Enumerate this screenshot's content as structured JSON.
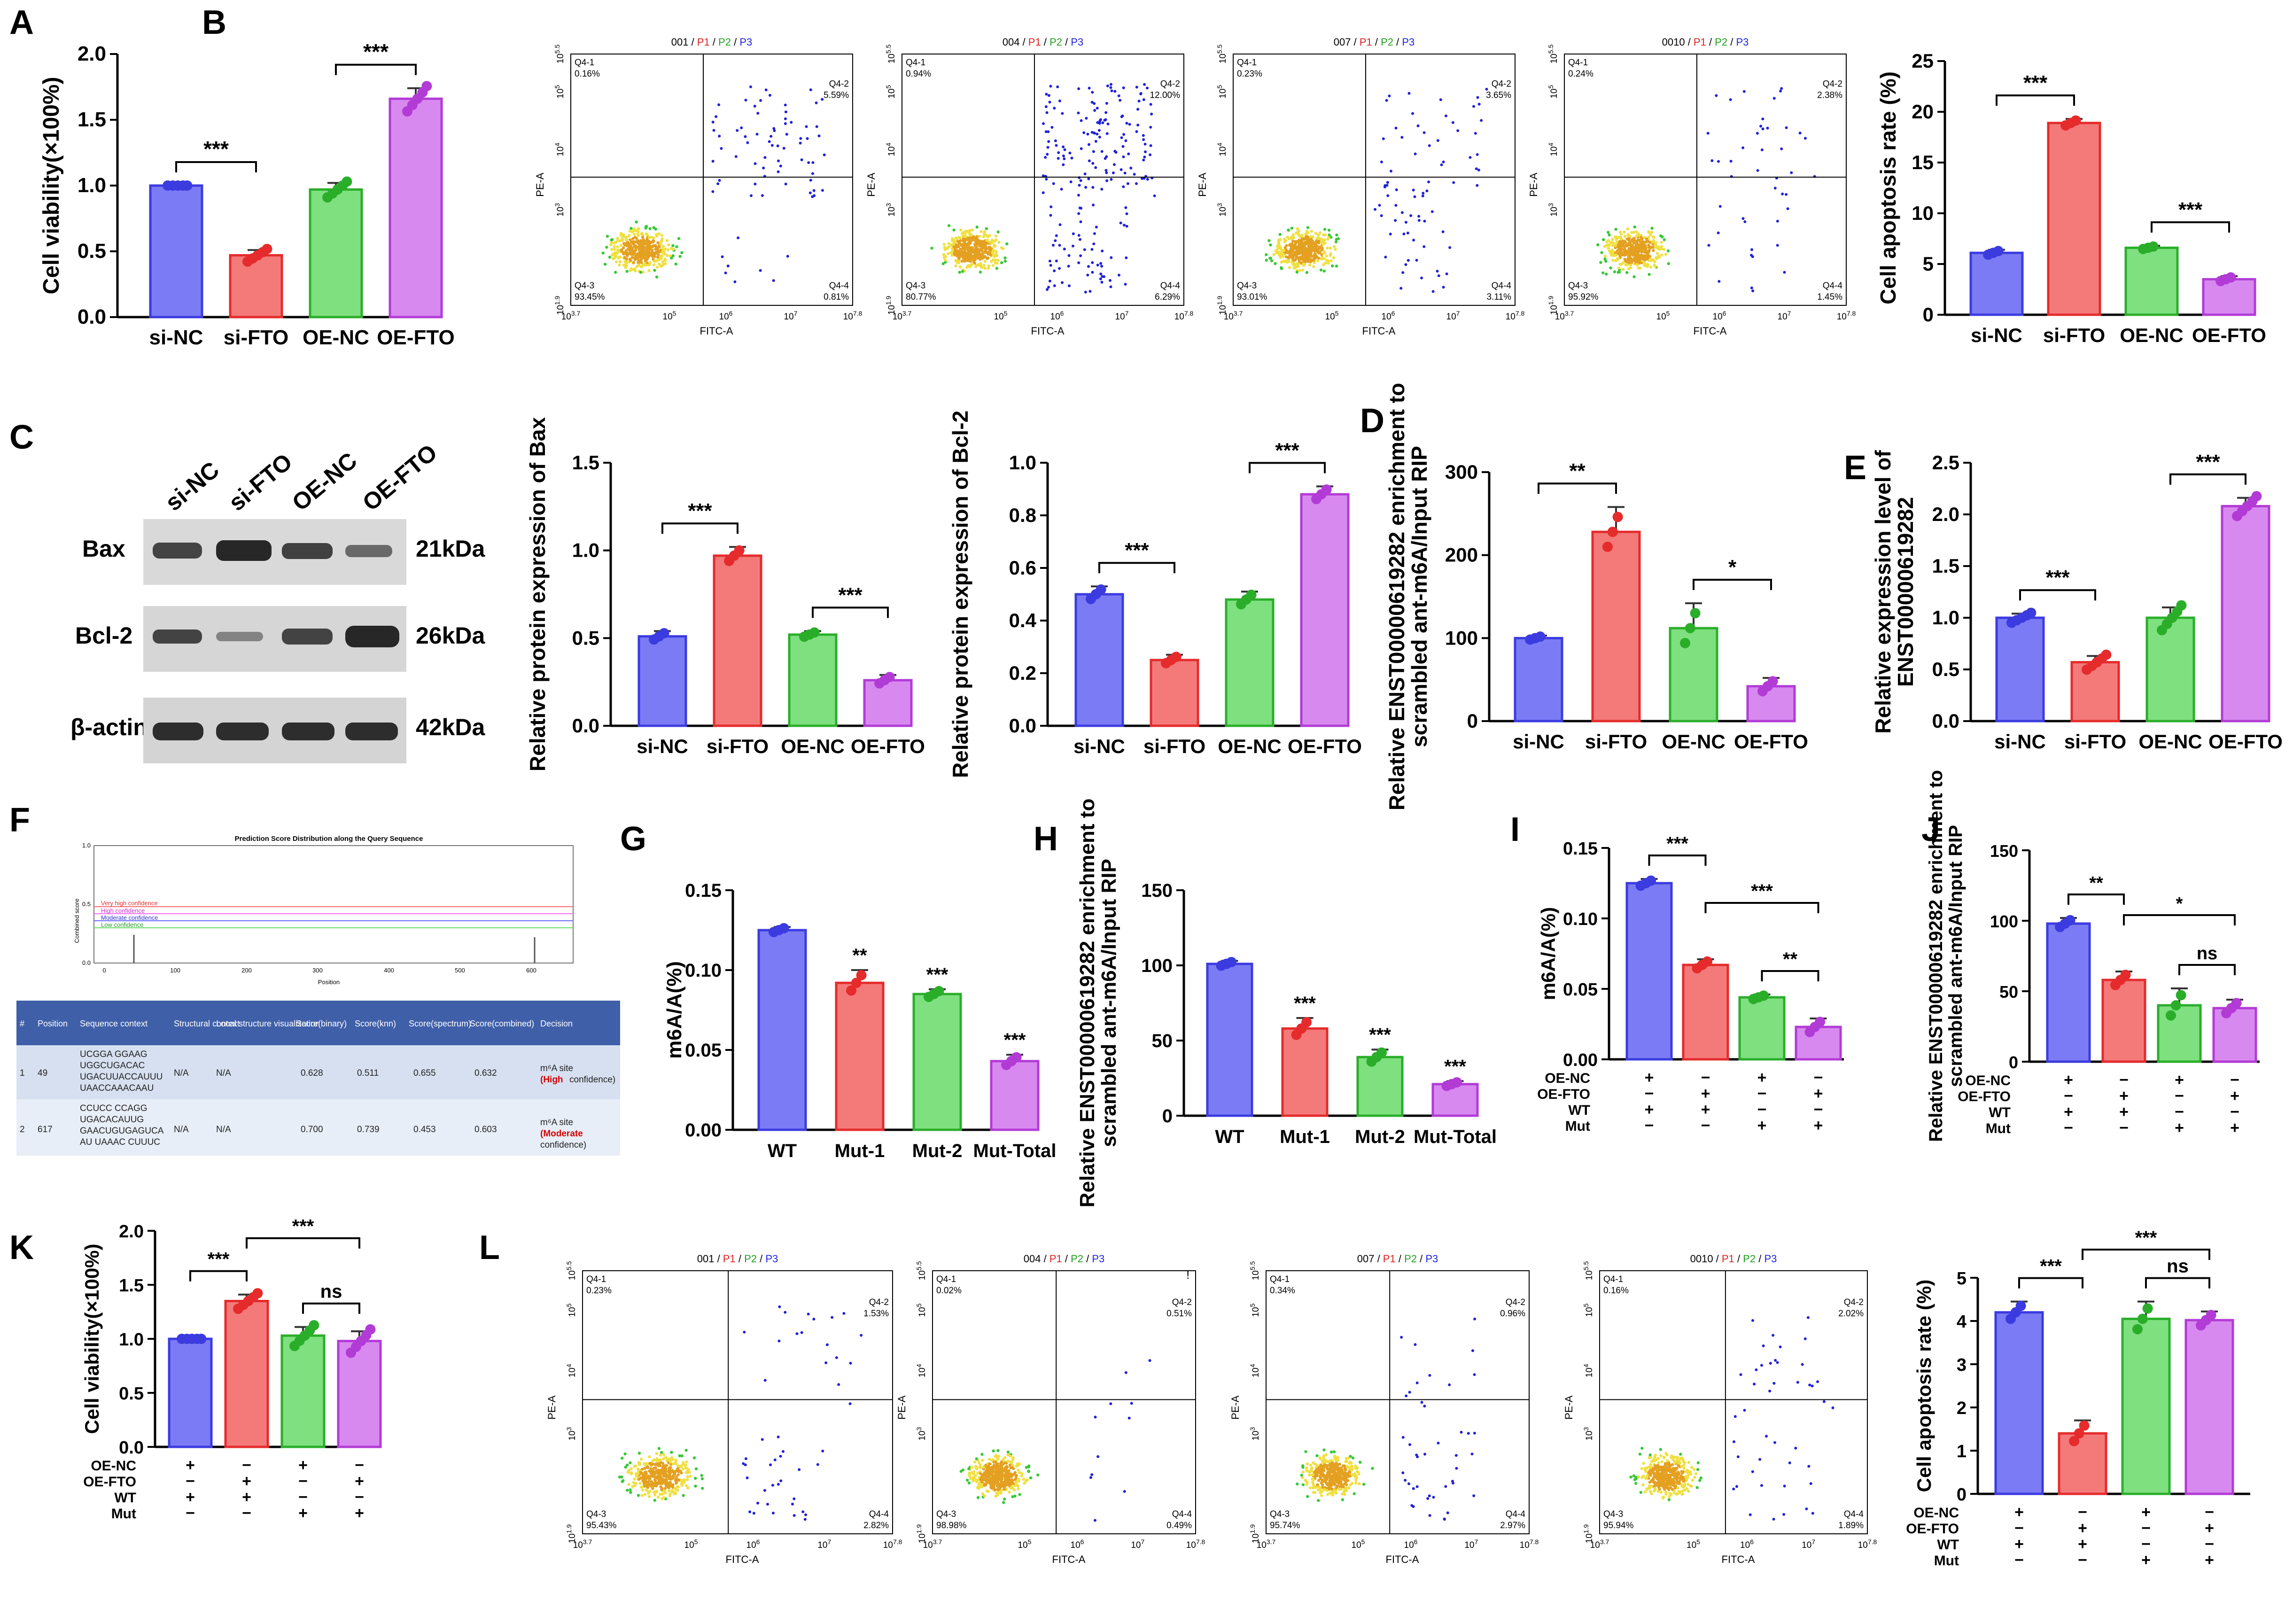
{
  "colors": {
    "blue": "#7b7bf5",
    "red": "#f47a7a",
    "green": "#7fe07f",
    "purple": "#d889f0",
    "dot_blue": "#3b3be0",
    "dot_red": "#e52b2b",
    "dot_green": "#2aae2a",
    "dot_purple": "#b23bd6"
  },
  "panels": {
    "A": "A",
    "B": "B",
    "C": "C",
    "D": "D",
    "E": "E",
    "F": "F",
    "G": "G",
    "H": "H",
    "I": "I",
    "J": "J",
    "K": "K",
    "L": "L"
  },
  "chart_data": [
    {
      "id": "A",
      "type": "bar",
      "categories": [
        "si-NC",
        "si-FTO",
        "OE-NC",
        "OE-FTO"
      ],
      "values": [
        1.0,
        0.47,
        0.97,
        1.66
      ],
      "errors": [
        0,
        0.04,
        0.05,
        0.08
      ],
      "ylabel": "Cell viability(×100%)",
      "ylim": [
        0,
        2.0
      ],
      "yticks": [
        "0.0",
        "0.5",
        "1.0",
        "1.5",
        "2.0"
      ],
      "sig": [
        {
          "label": "***",
          "from": 0,
          "to": 1
        },
        {
          "label": "***",
          "from": 2,
          "to": 3
        }
      ]
    },
    {
      "id": "B-bar",
      "type": "bar",
      "categories": [
        "si-NC",
        "si-FTO",
        "OE-NC",
        "OE-FTO"
      ],
      "values": [
        6.1,
        18.9,
        6.6,
        3.5
      ],
      "errors": [
        0.3,
        0.4,
        0.2,
        0.3
      ],
      "ylabel": "Cell apoptosis rate (%)",
      "ylim": [
        0,
        25
      ],
      "yticks": [
        "0",
        "5",
        "10",
        "15",
        "20",
        "25"
      ],
      "sig": [
        {
          "label": "***",
          "from": 0,
          "to": 1
        },
        {
          "label": "***",
          "from": 2,
          "to": 3
        }
      ]
    },
    {
      "id": "C-bax",
      "type": "bar",
      "categories": [
        "si-NC",
        "si-FTO",
        "OE-NC",
        "OE-FTO"
      ],
      "values": [
        0.51,
        0.97,
        0.52,
        0.26
      ],
      "errors": [
        0.03,
        0.05,
        0.02,
        0.03
      ],
      "ylabel": "Relative protein expression of Bax",
      "ylim": [
        0,
        1.5
      ],
      "yticks": [
        "0.0",
        "0.5",
        "1.0",
        "1.5"
      ],
      "sig": [
        {
          "label": "***",
          "from": 0,
          "to": 1
        },
        {
          "label": "***",
          "from": 2,
          "to": 3
        }
      ]
    },
    {
      "id": "C-bcl2",
      "type": "bar",
      "categories": [
        "si-NC",
        "si-FTO",
        "OE-NC",
        "OE-FTO"
      ],
      "values": [
        0.5,
        0.25,
        0.48,
        0.88
      ],
      "errors": [
        0.03,
        0.02,
        0.03,
        0.03
      ],
      "ylabel": "Relative protein expression of Bcl-2",
      "ylim": [
        0,
        1.0
      ],
      "yticks": [
        "0.0",
        "0.2",
        "0.4",
        "0.6",
        "0.8",
        "1.0"
      ],
      "sig": [
        {
          "label": "***",
          "from": 0,
          "to": 1
        },
        {
          "label": "***",
          "from": 2,
          "to": 3
        }
      ]
    },
    {
      "id": "D",
      "type": "bar",
      "categories": [
        "si-NC",
        "si-FTO",
        "OE-NC",
        "OE-FTO"
      ],
      "values": [
        100,
        228,
        112,
        42
      ],
      "errors": [
        3,
        30,
        30,
        10
      ],
      "ylabel": "Relative ENST00000619282 enrichment to scrambled ant-m6A/Input RIP",
      "ylim": [
        0,
        300
      ],
      "yticks": [
        "0",
        "100",
        "200",
        "300"
      ],
      "sig": [
        {
          "label": "**",
          "from": 0,
          "to": 1
        },
        {
          "label": "*",
          "from": 2,
          "to": 3
        }
      ]
    },
    {
      "id": "E",
      "type": "bar",
      "categories": [
        "si-NC",
        "si-FTO",
        "OE-NC",
        "OE-FTO"
      ],
      "values": [
        1.0,
        0.57,
        1.0,
        2.08
      ],
      "errors": [
        0.04,
        0.06,
        0.1,
        0.08
      ],
      "ylabel": "Relative expression level of ENST00000619282",
      "ylim": [
        0,
        2.5
      ],
      "yticks": [
        "0.0",
        "0.5",
        "1.0",
        "1.5",
        "2.0",
        "2.5"
      ],
      "sig": [
        {
          "label": "***",
          "from": 0,
          "to": 1
        },
        {
          "label": "***",
          "from": 2,
          "to": 3
        }
      ]
    },
    {
      "id": "G",
      "type": "bar",
      "categories": [
        "WT",
        "Mut-1",
        "Mut-2",
        "Mut-Total"
      ],
      "values": [
        0.125,
        0.092,
        0.085,
        0.043
      ],
      "errors": [
        0.002,
        0.008,
        0.003,
        0.004
      ],
      "ylabel": "m6A/A(%)",
      "ylim": [
        0,
        0.15
      ],
      "yticks": [
        "0.00",
        "0.05",
        "0.10",
        "0.15"
      ],
      "stars": [
        "",
        "**",
        "***",
        "***"
      ]
    },
    {
      "id": "H",
      "type": "bar",
      "categories": [
        "WT",
        "Mut-1",
        "Mut-2",
        "Mut-Total"
      ],
      "values": [
        101,
        58,
        39,
        21
      ],
      "errors": [
        2,
        7,
        5,
        2
      ],
      "ylabel": "Relative ENST00000619282 enrichment to scrambled ant-m6A/Input RIP",
      "ylim": [
        0,
        150
      ],
      "yticks": [
        "0",
        "50",
        "100",
        "150"
      ],
      "stars": [
        "",
        "***",
        "***",
        "***"
      ]
    },
    {
      "id": "I",
      "type": "bar",
      "categories": [
        "1",
        "2",
        "3",
        "4"
      ],
      "values": [
        0.125,
        0.067,
        0.044,
        0.023
      ],
      "errors": [
        0.003,
        0.004,
        0.002,
        0.006
      ],
      "ylabel": "m6A/A(%)",
      "ylim": [
        0,
        0.15
      ],
      "yticks": [
        "0.00",
        "0.05",
        "0.10",
        "0.15"
      ],
      "sig": [
        {
          "label": "***",
          "from": 0,
          "to": 1
        },
        {
          "label": "***",
          "from": 1,
          "to": 3
        },
        {
          "label": "**",
          "from": 2,
          "to": 3
        }
      ],
      "matrix": {
        "rows": [
          "OE-NC",
          "OE-FTO",
          "WT",
          "Mut"
        ],
        "cells": [
          [
            "+",
            "−",
            "+",
            "−"
          ],
          [
            "−",
            "+",
            "−",
            "+"
          ],
          [
            "+",
            "+",
            "−",
            "−"
          ],
          [
            "−",
            "−",
            "+",
            "+"
          ]
        ]
      }
    },
    {
      "id": "J",
      "type": "bar",
      "categories": [
        "1",
        "2",
        "3",
        "4"
      ],
      "values": [
        98,
        58,
        40,
        38
      ],
      "errors": [
        4,
        6,
        12,
        6
      ],
      "ylabel": "Relative ENST00000619282 enrichment to scrambled ant-m6A/Input RIP",
      "ylim": [
        0,
        150
      ],
      "yticks": [
        "0",
        "50",
        "100",
        "150"
      ],
      "sig": [
        {
          "label": "**",
          "from": 0,
          "to": 1
        },
        {
          "label": "*",
          "from": 1,
          "to": 3
        },
        {
          "label": "ns",
          "from": 2,
          "to": 3
        }
      ],
      "matrix": {
        "rows": [
          "OE-NC",
          "OE-FTO",
          "WT",
          "Mut"
        ],
        "cells": [
          [
            "+",
            "−",
            "+",
            "−"
          ],
          [
            "−",
            "+",
            "−",
            "+"
          ],
          [
            "+",
            "+",
            "−",
            "−"
          ],
          [
            "−",
            "−",
            "+",
            "+"
          ]
        ]
      }
    },
    {
      "id": "K",
      "type": "bar",
      "categories": [
        "1",
        "2",
        "3",
        "4"
      ],
      "values": [
        1.0,
        1.35,
        1.03,
        0.98
      ],
      "errors": [
        0,
        0.06,
        0.08,
        0.09
      ],
      "ylabel": "Cell viability(×100%)",
      "ylim": [
        0,
        2.0
      ],
      "yticks": [
        "0.0",
        "0.5",
        "1.0",
        "1.5",
        "2.0"
      ],
      "sig": [
        {
          "label": "***",
          "from": 0,
          "to": 1
        },
        {
          "label": "***",
          "from": 1,
          "to": 3
        },
        {
          "label": "ns",
          "from": 2,
          "to": 3
        }
      ],
      "matrix": {
        "rows": [
          "OE-NC",
          "OE-FTO",
          "WT",
          "Mut"
        ],
        "cells": [
          [
            "+",
            "−",
            "+",
            "−"
          ],
          [
            "−",
            "+",
            "−",
            "+"
          ],
          [
            "+",
            "+",
            "−",
            "−"
          ],
          [
            "−",
            "−",
            "+",
            "+"
          ]
        ]
      }
    },
    {
      "id": "L-bar",
      "type": "bar",
      "categories": [
        "1",
        "2",
        "3",
        "4"
      ],
      "values": [
        4.2,
        1.4,
        4.05,
        4.02
      ],
      "errors": [
        0.25,
        0.3,
        0.4,
        0.2
      ],
      "ylabel": "Cell apoptosis rate (%)",
      "ylim": [
        0,
        5
      ],
      "yticks": [
        "0",
        "1",
        "2",
        "3",
        "4",
        "5"
      ],
      "sig": [
        {
          "label": "***",
          "from": 0,
          "to": 1
        },
        {
          "label": "***",
          "from": 1,
          "to": 3
        },
        {
          "label": "ns",
          "from": 2,
          "to": 3
        }
      ],
      "matrix": {
        "rows": [
          "OE-NC",
          "OE-FTO",
          "WT",
          "Mut"
        ],
        "cells": [
          [
            "+",
            "−",
            "+",
            "−"
          ],
          [
            "−",
            "+",
            "−",
            "+"
          ],
          [
            "+",
            "+",
            "−",
            "−"
          ],
          [
            "−",
            "−",
            "+",
            "+"
          ]
        ]
      }
    }
  ],
  "flow": [
    {
      "row": "B",
      "title": [
        "0001",
        "/ P1 /",
        "P2",
        "/ P3"
      ],
      "t0": "001 /",
      "t1": "P1",
      "t2": " / ",
      "t3": "P2",
      "t4": " / ",
      "t5": "P3",
      "q": [
        "Q4-1",
        "0.16%",
        "Q4-2",
        "5.59%",
        "Q4-3",
        "93.45%",
        "Q4-4",
        "0.81%"
      ]
    },
    {
      "row": "B",
      "t0": "004 /",
      "t1": "P1",
      "t2": " / ",
      "t3": "P2",
      "t4": " / ",
      "t5": "P3",
      "q": [
        "Q4-1",
        "0.94%",
        "Q4-2",
        "12.00%",
        "Q4-3",
        "80.77%",
        "Q4-4",
        "6.29%"
      ]
    },
    {
      "row": "B",
      "t0": "007 /",
      "t1": "P1",
      "t2": " / ",
      "t3": "P2",
      "t4": " / ",
      "t5": "P3",
      "q": [
        "Q4-1",
        "0.23%",
        "Q4-2",
        "3.65%",
        "Q4-3",
        "93.01%",
        "Q4-4",
        "3.11%"
      ]
    },
    {
      "row": "B",
      "t0": "0010 /",
      "t1": "P1",
      "t2": " / ",
      "t3": "P2",
      "t4": " / ",
      "t5": "P3",
      "q": [
        "Q4-1",
        "0.24%",
        "Q4-2",
        "2.38%",
        "Q4-3",
        "95.92%",
        "Q4-4",
        "1.45%"
      ]
    },
    {
      "row": "L",
      "t0": "001 /",
      "t1": "P1",
      "t2": " / ",
      "t3": "P2",
      "t4": " / ",
      "t5": "P3",
      "q": [
        "Q4-1",
        "0.23%",
        "Q4-2",
        "1.53%",
        "Q4-3",
        "95.43%",
        "Q4-4",
        "2.82%"
      ]
    },
    {
      "row": "L",
      "t0": "004 /",
      "t1": "P1",
      "t2": " / ",
      "t3": "P2",
      "t4": " / ",
      "t5": "P3",
      "q": [
        "Q4-1",
        "0.02%",
        "Q4-2",
        "0.51%",
        "Q4-3",
        "98.98%",
        "Q4-4",
        "0.49%"
      ]
    },
    {
      "row": "L",
      "t0": "007 /",
      "t1": "P1",
      "t2": " / ",
      "t3": "P2",
      "t4": " / ",
      "t5": "P3",
      "q": [
        "Q4-1",
        "0.34%",
        "Q4-2",
        "0.96%",
        "Q4-3",
        "95.74%",
        "Q4-4",
        "2.97%"
      ]
    },
    {
      "row": "L",
      "t0": "0010 /",
      "t1": "P1",
      "t2": " / ",
      "t3": "P2",
      "t4": " / ",
      "t5": "P3",
      "q": [
        "Q4-1",
        "0.16%",
        "Q4-2",
        "2.02%",
        "Q4-3",
        "95.94%",
        "Q4-4",
        "1.89%"
      ]
    }
  ],
  "flow_axes": {
    "ylabel": "PE-A",
    "xlabel": "FITC-A",
    "ytop": "10",
    "ytop_exp": "5.5",
    "y5": "10",
    "y5_exp": "5",
    "y4": "10",
    "y4_exp": "4",
    "y3": "10",
    "y3_exp": "3",
    "ybot": "10",
    "ybot_exp": "1.9",
    "xleft": "10",
    "xleft_exp": "3.7",
    "x5": "10",
    "x5_exp": "5",
    "x6": "10",
    "x6_exp": "6",
    "x7": "10",
    "x7_exp": "7",
    "xright": "10",
    "xright_exp": "7.8"
  },
  "western": {
    "lanes": [
      "si-NC",
      "si-FTO",
      "OE-NC",
      "OE-FTO"
    ],
    "bands": [
      {
        "name": "Bax",
        "kda": "21kDa"
      },
      {
        "name": "Bcl-2",
        "kda": "26kDa"
      },
      {
        "name": "β-actin",
        "kda": "42kDa"
      }
    ]
  },
  "prediction": {
    "title": "Prediction Score Distribution along the Query Sequence",
    "ylabel": "Combined score",
    "xlabel": "Position",
    "legend": [
      "Very high confidence",
      "High confidence",
      "Moderate confidence",
      "Low confidence"
    ],
    "xticks": [
      "0",
      "100",
      "200",
      "300",
      "400",
      "500",
      "600"
    ],
    "yticks": [
      "0.0",
      "0.5",
      "1.0"
    ],
    "headers": [
      "#",
      "Position",
      "Sequence context",
      "Structural context",
      "Local structure visualization",
      "Score(binary)",
      "Score(knn)",
      "Score(spectrum)",
      "Score(combined)",
      "Decision"
    ],
    "rows": [
      {
        "n": "1",
        "pos": "49",
        "seq1": "UCGGA GGAAG",
        "seq2": "UGGCUGACAC",
        "seq3": "UGACUUACCAUUU",
        "seq4": "UAACCAAACAAU",
        "struct": "N/A",
        "local": "N/A",
        "binary": "0.628",
        "knn": "0.511",
        "spectrum": "0.655",
        "combined": "0.632",
        "dec_a": "m⁶A site",
        "dec_b": "(High",
        "dec_c": "confidence)"
      },
      {
        "n": "2",
        "pos": "617",
        "seq1": "CCUCC CCAGG",
        "seq2": "UGACACAUUG",
        "seq3": "GAACUGUGAGUCA",
        "seq4": "AU UAAAC CUUUC",
        "struct": "N/A",
        "local": "N/A",
        "binary": "0.700",
        "knn": "0.739",
        "spectrum": "0.453",
        "combined": "0.603",
        "dec_a": "m⁶A site",
        "dec_b": "(Moderate",
        "dec_c": "confidence)"
      }
    ]
  },
  "misc": {
    "bang": "!"
  }
}
